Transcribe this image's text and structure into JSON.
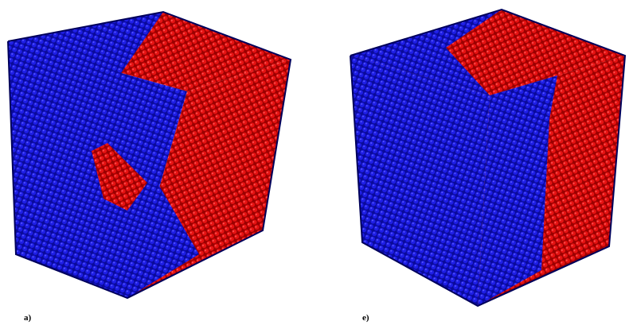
{
  "panels": [
    {
      "label": "a)"
    },
    {
      "label": "e)"
    }
  ]
}
